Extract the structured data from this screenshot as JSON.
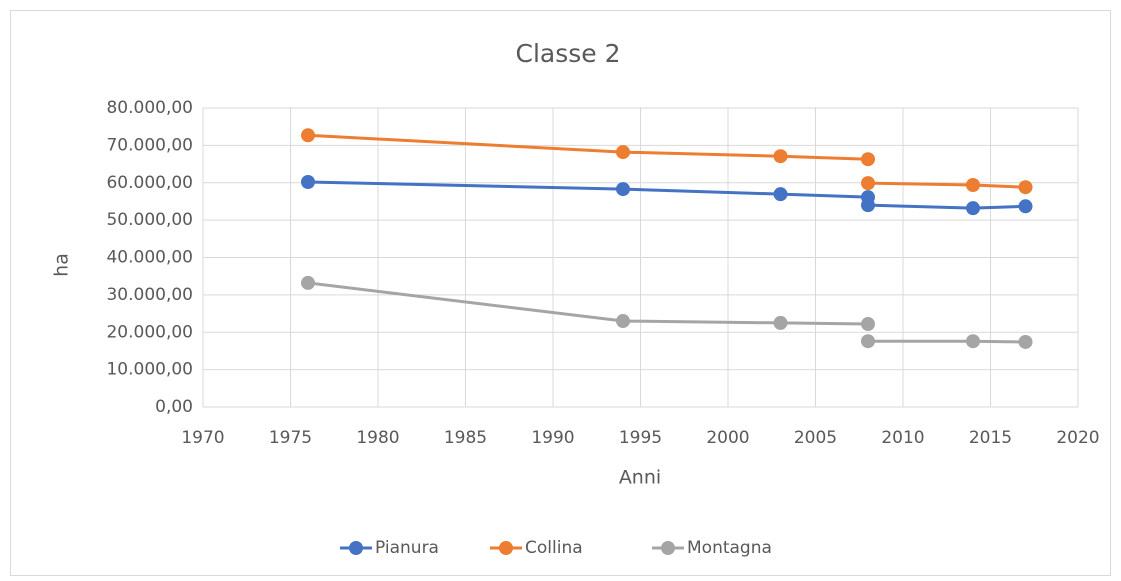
{
  "chart_data": {
    "type": "line",
    "title": "Classe 2",
    "x_label": "Anni",
    "y_label": "ha",
    "x": [
      1976,
      1994,
      2003,
      2008,
      null,
      2008,
      2014,
      2017
    ],
    "series": [
      {
        "name": "Pianura",
        "color": "#4472c4",
        "values": [
          60200,
          58300,
          56950,
          56150,
          null,
          54000,
          53200,
          53700
        ]
      },
      {
        "name": "Collina",
        "color": "#ed7d31",
        "values": [
          72700,
          68200,
          67100,
          66300,
          null,
          59900,
          59400,
          58800
        ]
      },
      {
        "name": "Montagna",
        "color": "#a5a5a5",
        "values": [
          33200,
          23000,
          22500,
          22200,
          null,
          17600,
          17600,
          17400
        ]
      }
    ],
    "xlim": [
      1970,
      2020
    ],
    "xticks": [
      1970,
      1975,
      1980,
      1985,
      1990,
      1995,
      2000,
      2005,
      2010,
      2015,
      2020
    ],
    "ylim": [
      0,
      80000
    ],
    "yticks": [
      {
        "value": 0,
        "label": "0,00"
      },
      {
        "value": 10000,
        "label": "10.000,00"
      },
      {
        "value": 20000,
        "label": "20.000,00"
      },
      {
        "value": 30000,
        "label": "30.000,00"
      },
      {
        "value": 40000,
        "label": "40.000,00"
      },
      {
        "value": 50000,
        "label": "50.000,00"
      },
      {
        "value": 60000,
        "label": "60.000,00"
      },
      {
        "value": 70000,
        "label": "70.000,00"
      },
      {
        "value": 80000,
        "label": "80.000,00"
      }
    ],
    "grid": true,
    "legend": "bottom"
  }
}
